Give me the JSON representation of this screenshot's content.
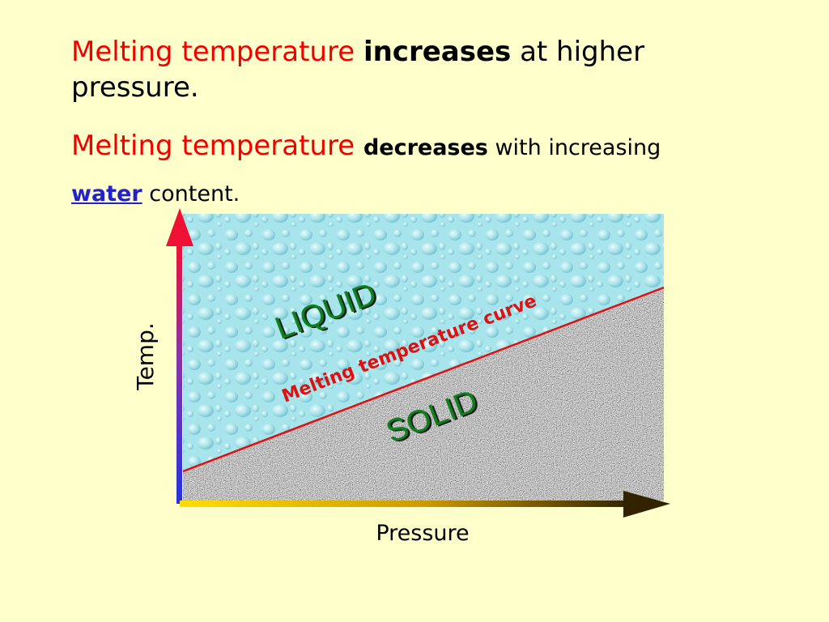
{
  "text": {
    "line1_part1": "Melting temperature ",
    "line1_bold": "increases",
    "line1_part2": " at higher",
    "line2": "pressure.",
    "line3_part1": "Melting temperature ",
    "line3_bold": "decreases",
    "line3_part2": " with increasing",
    "line4_water": "water",
    "line4_part2": " content."
  },
  "diagram": {
    "liquid_label": "LIQUID",
    "solid_label": "SOLID",
    "curve_label": "Melting temperature curve",
    "y_axis_label": "Temp.",
    "x_axis_label": "Pressure"
  },
  "colors": {
    "background": "#ffffcc",
    "emphasis_red": "#f00000",
    "water_blue": "#2222cc",
    "liquid_fill": "#a8e4ec",
    "solid_fill": "#9a9a9a",
    "curve": "#dd1111",
    "region_label_green": "#0f7f1f",
    "y_axis_gradient": [
      "#2233dd",
      "#ee1133"
    ],
    "x_axis_gradient": [
      "#ffdd00",
      "#332200"
    ]
  }
}
